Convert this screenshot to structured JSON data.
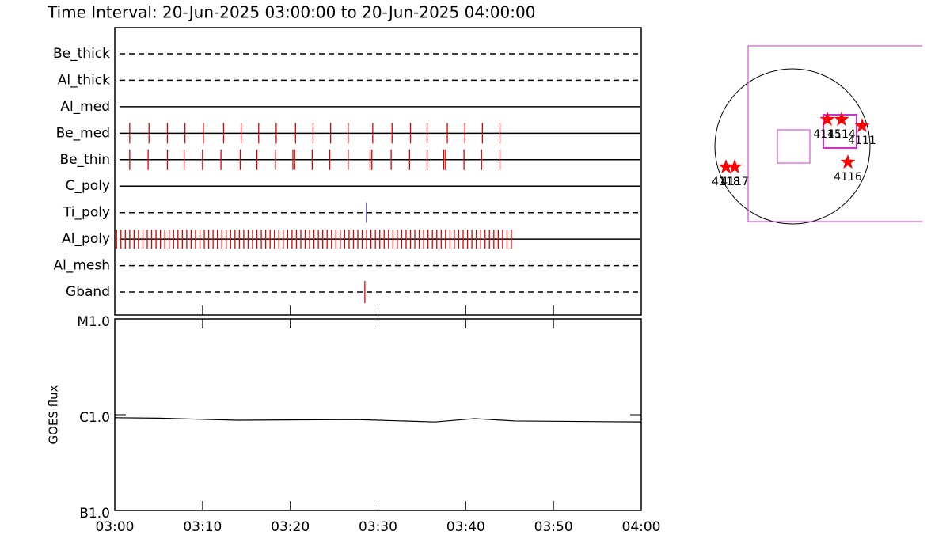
{
  "chart_data": [
    {
      "type": "timeline",
      "title": "Time Interval: 20-Jun-2025 03:00:00 to 20-Jun-2025 04:00:00",
      "xlim": [
        0,
        60
      ],
      "rows": [
        {
          "name": "Be_thick",
          "style": "dashed",
          "color": "#e00000",
          "times": []
        },
        {
          "name": "Al_thick",
          "style": "dashed",
          "color": "#e00000",
          "times": []
        },
        {
          "name": "Al_med",
          "style": "solid",
          "color": "#e00000",
          "times": []
        },
        {
          "name": "Be_med",
          "style": "solid",
          "color": "#e00000",
          "times": [
            1.7,
            3.9,
            6.0,
            8.0,
            10.1,
            12.4,
            14.4,
            16.4,
            18.4,
            20.6,
            22.6,
            24.6,
            26.6,
            29.4,
            31.6,
            33.7,
            35.6,
            37.9,
            39.9,
            41.9,
            43.9
          ]
        },
        {
          "name": "Be_thin",
          "style": "solid",
          "color": "#e00000",
          "times": [
            1.7,
            3.8,
            6.0,
            7.9,
            10.0,
            12.1,
            14.3,
            16.2,
            18.3,
            20.3,
            20.5,
            22.5,
            24.5,
            26.6,
            29.1,
            29.3,
            31.5,
            33.6,
            35.6,
            37.5,
            37.7,
            39.8,
            41.8,
            43.9
          ]
        },
        {
          "name": "C_poly",
          "style": "solid",
          "color": "#e00000",
          "times": []
        },
        {
          "name": "Ti_poly",
          "style": "dashed",
          "color": "#000060",
          "times": [
            28.7
          ]
        },
        {
          "name": "Al_poly",
          "style": "solid",
          "color": "#e00000",
          "times": [
            0.2,
            0.7,
            1.2,
            1.7,
            2.2,
            2.7,
            3.2,
            3.7,
            4.2,
            4.7,
            5.2,
            5.7,
            6.2,
            6.7,
            7.2,
            7.7,
            8.2,
            8.7,
            9.2,
            9.7,
            10.2,
            10.7,
            11.2,
            11.7,
            12.2,
            12.7,
            13.2,
            13.7,
            14.2,
            14.7,
            15.2,
            15.7,
            16.2,
            16.7,
            17.2,
            17.7,
            18.2,
            18.7,
            19.2,
            19.7,
            20.2,
            20.7,
            21.2,
            21.7,
            22.2,
            22.7,
            23.2,
            23.7,
            24.2,
            24.7,
            25.2,
            25.7,
            26.2,
            26.7,
            27.2,
            27.7,
            28.2,
            28.7,
            29.2,
            29.7,
            30.2,
            30.7,
            31.2,
            31.7,
            32.2,
            32.7,
            33.2,
            33.7,
            34.2,
            34.7,
            35.2,
            35.7,
            36.2,
            36.7,
            37.2,
            37.7,
            38.2,
            38.7,
            39.2,
            39.7,
            40.2,
            40.7,
            41.2,
            41.7,
            42.2,
            42.7,
            43.2,
            43.7,
            44.2,
            44.7,
            45.2
          ]
        },
        {
          "name": "Al_mesh",
          "style": "dashed",
          "color": "#e00000",
          "times": []
        },
        {
          "name": "Gband",
          "style": "dashed",
          "color": "#e00000",
          "times": [
            28.5
          ]
        }
      ]
    },
    {
      "type": "line",
      "ylabel": "GOES flux",
      "x": [
        0,
        5,
        14,
        27.5,
        36.5,
        41,
        45.6,
        60
      ],
      "values": [
        9.3e-07,
        9.2e-07,
        8.75e-07,
        8.9e-07,
        8.4e-07,
        9.1e-07,
        8.6e-07,
        8.4e-07
      ],
      "color": "#000000",
      "log_scale": true,
      "xlim": [
        0,
        60
      ],
      "xticks": [
        {
          "value": 0,
          "label": "03:00"
        },
        {
          "value": 10,
          "label": "03:10"
        },
        {
          "value": 20,
          "label": "03:20"
        },
        {
          "value": 30,
          "label": "03:30"
        },
        {
          "value": 40,
          "label": "03:40"
        },
        {
          "value": 50,
          "label": "03:50"
        },
        {
          "value": 60,
          "label": "04:00"
        }
      ],
      "ylim": [
        1e-07,
        1e-05
      ],
      "yticks": [
        {
          "value": 1e-05,
          "label": "M1.0"
        },
        {
          "value": 1e-06,
          "label": "C1.0"
        },
        {
          "value": 1e-07,
          "label": "B1.0"
        }
      ]
    },
    {
      "type": "map",
      "color": "#ff0000",
      "points": [
        {
          "label": "4115",
          "x": 427,
          "y": 330
        },
        {
          "label": "4114",
          "x": 601,
          "y": 330
        },
        {
          "label": "4111",
          "x": 853,
          "y": 252
        },
        {
          "label": "4116",
          "x": 679,
          "y": -194
        },
        {
          "label": "4118",
          "x": -815,
          "y": -252
        },
        {
          "label": "4117",
          "x": -708,
          "y": -252
        }
      ]
    }
  ]
}
